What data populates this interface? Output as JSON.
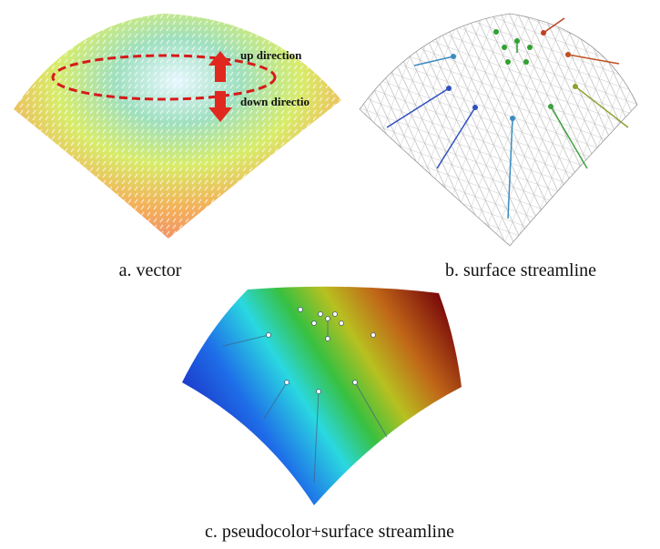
{
  "panels": [
    {
      "caption": "a. vector",
      "annotations": [
        "up direction",
        "down directio"
      ]
    },
    {
      "caption": "b. surface streamline"
    },
    {
      "caption": "c. pseudocolor+surface streamline"
    }
  ]
}
